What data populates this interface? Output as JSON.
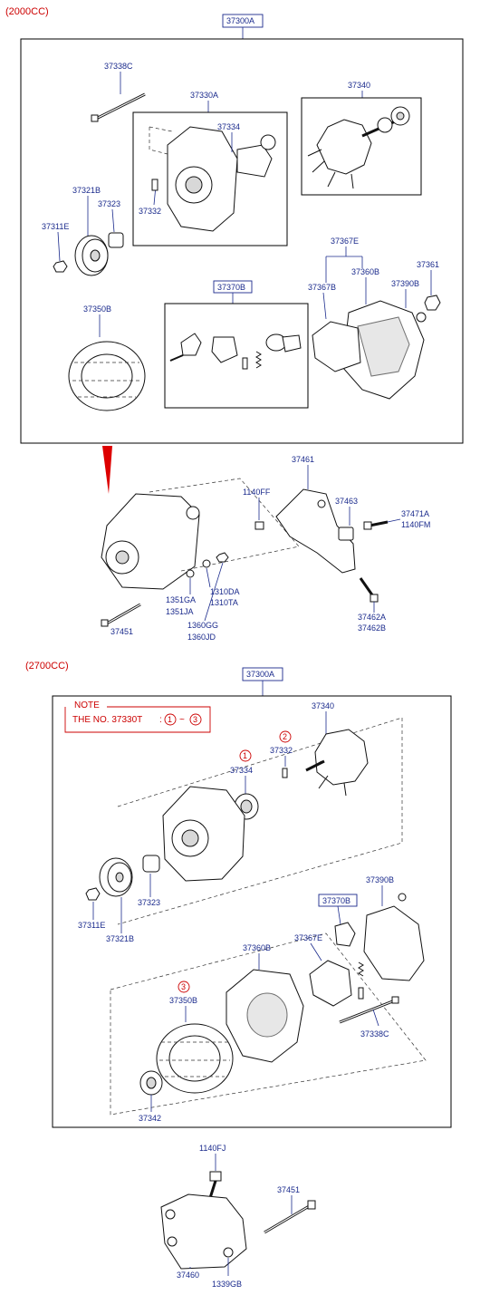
{
  "sections": {
    "top_label": "(2000CC)",
    "bottom_label": "(2700CC)"
  },
  "top": {
    "assembly": "37300A",
    "labels": {
      "p37338C": "37338C",
      "p37330A": "37330A",
      "p37334": "37334",
      "p37340": "37340",
      "p37321B": "37321B",
      "p37323": "37323",
      "p37332": "37332",
      "p37311E": "37311E",
      "p37367E": "37367E",
      "p37360B": "37360B",
      "p37361": "37361",
      "p37367B": "37367B",
      "p37390B": "37390B",
      "p37370B": "37370B",
      "p37350B": "37350B"
    }
  },
  "mount": {
    "labels": {
      "p37461": "37461",
      "p1140FF": "1140FF",
      "p37463": "37463",
      "p37471A": "37471A",
      "p1140FM": "1140FM",
      "p1351GA": "1351GA",
      "p1351JA": "1351JA",
      "p1310DA": "1310DA",
      "p1310TA": "1310TA",
      "p1360GG": "1360GG",
      "p1360JD": "1360JD",
      "p37451": "37451",
      "p37462A": "37462A",
      "p37462B": "37462B"
    }
  },
  "bottom": {
    "assembly": "37300A",
    "note_title": "NOTE",
    "note_text": "THE NO.  37330T",
    "note_range_sep": ":",
    "note_dash": "~",
    "circle_1": "1",
    "circle_2": "2",
    "circle_3": "3",
    "labels": {
      "p37340": "37340",
      "p37332": "37332",
      "p37334": "37334",
      "p37323": "37323",
      "p37311E": "37311E",
      "p37321B": "37321B",
      "p37390B": "37390B",
      "p37370B": "37370B",
      "p37360B": "37360B",
      "p37367E": "37367E",
      "p37350B": "37350B",
      "p37338C": "37338C",
      "p37342": "37342"
    }
  },
  "bracket": {
    "labels": {
      "p1140FJ": "1140FJ",
      "p37451": "37451",
      "p37460": "37460",
      "p1339GB": "1339GB"
    }
  }
}
